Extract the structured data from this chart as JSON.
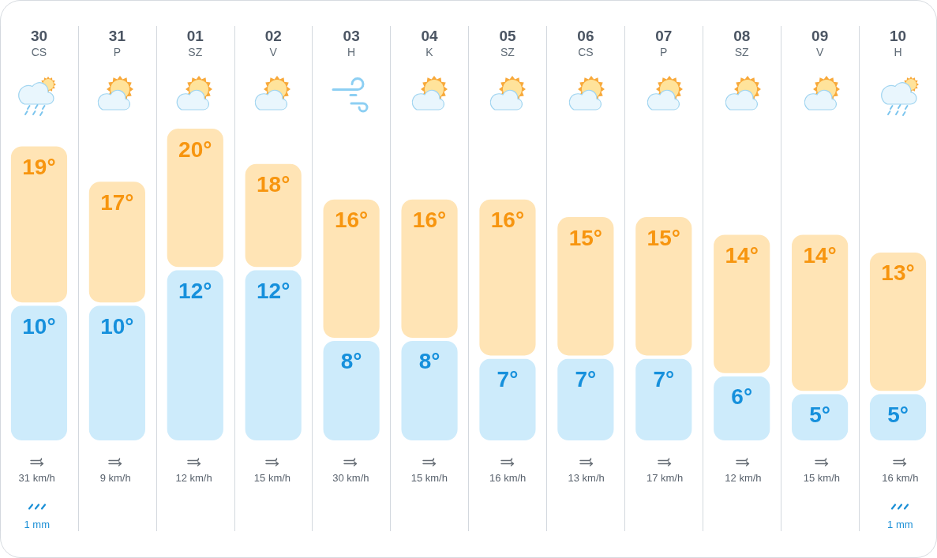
{
  "chart_data": {
    "type": "bar",
    "stacked": true,
    "categories": [
      "30\nCS",
      "31\nP",
      "01\nSZ",
      "02\nV",
      "03\nH",
      "04\nK",
      "05\nSZ",
      "06\nCS",
      "07\nP",
      "08\nSZ",
      "09\nV",
      "10\nH"
    ],
    "series": [
      {
        "color": "#cdebfb",
        "values": [
          10,
          10,
          12,
          12,
          8,
          8,
          7,
          7,
          7,
          6,
          5,
          5
        ],
        "value_labels": [
          "10°",
          "10°",
          "12°",
          "12°",
          "8°",
          "8°",
          "7°",
          "7°",
          "7°",
          "6°",
          "5°",
          "5°"
        ]
      },
      {
        "color": "#ffe4b5",
        "values": [
          9,
          7,
          8,
          6,
          8,
          8,
          9,
          8,
          8,
          8,
          9,
          8
        ]
      }
    ],
    "totals": [
      "19°",
      "17°",
      "20°",
      "18°",
      "16°",
      "16°",
      "16°",
      "15°",
      "15°",
      "14°",
      "14°",
      "13°"
    ],
    "ylim": [
      2.2,
      20
    ],
    "grid": "x",
    "tick_labels": "x",
    "annotations": [
      "31 km/h",
      "9 km/h",
      "12 km/h",
      "15 km/h",
      "30 km/h",
      "15 km/h",
      "16 km/h",
      "13 km/h",
      "17 km/h",
      "12 km/h",
      "15 km/h",
      "16 km/h",
      "1 mm",
      "1 mm"
    ]
  }
}
